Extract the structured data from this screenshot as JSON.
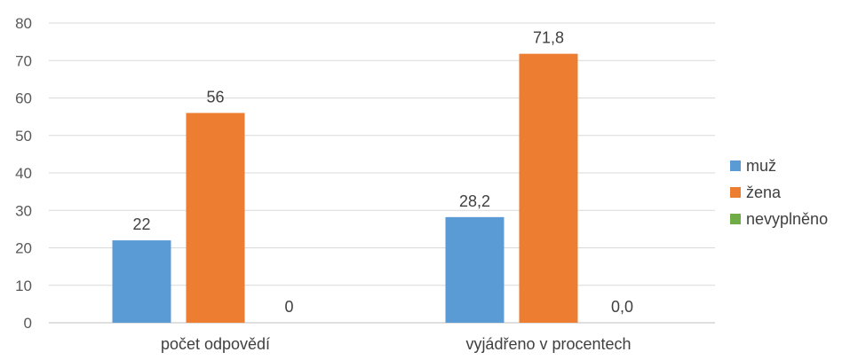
{
  "chart_data": {
    "type": "bar",
    "categories": [
      "počet odpovědí",
      "vyjádřeno v procentech"
    ],
    "series": [
      {
        "name": "muž",
        "values": [
          22,
          28.2
        ],
        "labels": [
          "22",
          "28,2"
        ],
        "color": "#5b9bd5"
      },
      {
        "name": "žena",
        "values": [
          56,
          71.8
        ],
        "labels": [
          "56",
          "71,8"
        ],
        "color": "#ed7d31"
      },
      {
        "name": "nevyplněno",
        "values": [
          0,
          0
        ],
        "labels": [
          "0",
          "0,0"
        ],
        "color": "#70ad47"
      }
    ],
    "ylim": [
      0,
      80
    ],
    "yticks": [
      "0",
      "10",
      "20",
      "30",
      "40",
      "50",
      "60",
      "70",
      "80"
    ],
    "grid": true,
    "legend_position": "right"
  }
}
